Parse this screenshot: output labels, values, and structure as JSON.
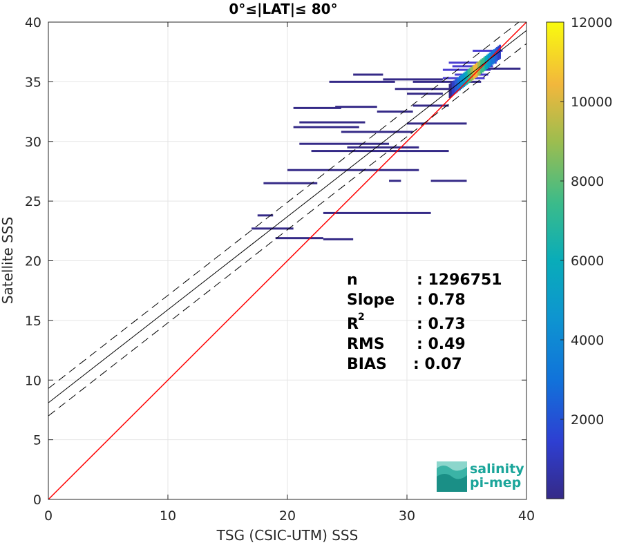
{
  "chart_data": {
    "type": "scatter",
    "subtype": "density-heatmap",
    "title": "0°≤|LAT|≤ 80°",
    "xlabel": "TSG (CSIC-UTM) SSS",
    "ylabel": "Satellite SSS",
    "xlim": [
      0,
      40
    ],
    "ylim": [
      0,
      40
    ],
    "xticks": [
      0,
      10,
      20,
      30,
      40
    ],
    "yticks": [
      0,
      5,
      10,
      15,
      20,
      25,
      30,
      35,
      40
    ],
    "grid": true,
    "colorbar": {
      "range": [
        0,
        12000
      ],
      "ticks": [
        2000,
        4000,
        6000,
        8000,
        10000,
        12000
      ],
      "colormap": "parula"
    },
    "lines": {
      "one_to_one": {
        "slope": 1,
        "intercept": 0,
        "color": "#ff0000"
      },
      "fit": {
        "slope": 0.78,
        "intercept": 8.1,
        "color": "#000000"
      },
      "fit_upper": {
        "slope": 0.78,
        "intercept": 9.3,
        "color": "#000000",
        "style": "dashed"
      },
      "fit_lower": {
        "slope": 0.78,
        "intercept": 7.0,
        "color": "#000000",
        "style": "dashed"
      }
    },
    "segments": [
      {
        "x0": 33.5,
        "x1": 37.5,
        "y": 36.6,
        "density": 0.3
      },
      {
        "x0": 33.8,
        "x1": 37.2,
        "y": 36.3,
        "density": 0.4
      },
      {
        "x0": 33.0,
        "x1": 37.0,
        "y": 36.0,
        "density": 0.35
      },
      {
        "x0": 34.0,
        "x1": 36.8,
        "y": 35.6,
        "density": 0.3
      },
      {
        "x0": 33.0,
        "x1": 36.5,
        "y": 35.3,
        "density": 0.25
      },
      {
        "x0": 30.5,
        "x1": 36.2,
        "y": 35.0,
        "density": 0.15
      },
      {
        "x0": 29.0,
        "x1": 34.5,
        "y": 34.4,
        "density": 0.1
      },
      {
        "x0": 28.0,
        "x1": 33.0,
        "y": 35.2,
        "density": 0.08
      },
      {
        "x0": 23.5,
        "x1": 29.0,
        "y": 35.0,
        "density": 0.06
      },
      {
        "x0": 25.5,
        "x1": 28.0,
        "y": 35.6,
        "density": 0.06
      },
      {
        "x0": 30.0,
        "x1": 33.0,
        "y": 34.0,
        "density": 0.1
      },
      {
        "x0": 24.0,
        "x1": 27.5,
        "y": 32.9,
        "density": 0.08
      },
      {
        "x0": 20.5,
        "x1": 24.5,
        "y": 32.8,
        "density": 0.05
      },
      {
        "x0": 27.5,
        "x1": 30.5,
        "y": 32.5,
        "density": 0.08
      },
      {
        "x0": 30.5,
        "x1": 33.5,
        "y": 33.0,
        "density": 0.08
      },
      {
        "x0": 21.0,
        "x1": 26.5,
        "y": 31.6,
        "density": 0.06
      },
      {
        "x0": 30.0,
        "x1": 35.0,
        "y": 31.5,
        "density": 0.06
      },
      {
        "x0": 20.5,
        "x1": 26.0,
        "y": 31.2,
        "density": 0.05
      },
      {
        "x0": 24.5,
        "x1": 30.5,
        "y": 30.8,
        "density": 0.06
      },
      {
        "x0": 21.0,
        "x1": 28.5,
        "y": 29.8,
        "density": 0.06
      },
      {
        "x0": 25.0,
        "x1": 31.0,
        "y": 29.5,
        "density": 0.06
      },
      {
        "x0": 22.0,
        "x1": 33.5,
        "y": 29.2,
        "density": 0.05
      },
      {
        "x0": 20.0,
        "x1": 31.0,
        "y": 27.6,
        "density": 0.05
      },
      {
        "x0": 32.0,
        "x1": 35.0,
        "y": 26.7,
        "density": 0.1
      },
      {
        "x0": 28.5,
        "x1": 29.5,
        "y": 26.7,
        "density": 0.05
      },
      {
        "x0": 18.0,
        "x1": 22.5,
        "y": 26.5,
        "density": 0.1
      },
      {
        "x0": 23.0,
        "x1": 32.0,
        "y": 24.0,
        "density": 0.04
      },
      {
        "x0": 17.5,
        "x1": 18.8,
        "y": 23.8,
        "density": 0.06
      },
      {
        "x0": 17.0,
        "x1": 20.5,
        "y": 22.7,
        "density": 0.08
      },
      {
        "x0": 19.0,
        "x1": 23.0,
        "y": 21.9,
        "density": 0.12
      },
      {
        "x0": 23.0,
        "x1": 25.5,
        "y": 21.8,
        "density": 0.04
      },
      {
        "x0": 36.0,
        "x1": 39.5,
        "y": 36.1,
        "density": 0.05
      },
      {
        "x0": 35.5,
        "x1": 38.0,
        "y": 37.6,
        "density": 0.25
      }
    ],
    "core": {
      "x0": 33.5,
      "x1": 37.7,
      "density": 0.9
    }
  },
  "stats": {
    "n_label": "n",
    "n_value": ": 1296751",
    "slope_label": "Slope",
    "slope_value": ": 0.78",
    "r2_label": "R",
    "r2_sup": "2",
    "r2_value": ": 0.73",
    "rms_label": "RMS",
    "rms_value": ": 0.49",
    "bias_label": "BIAS",
    "bias_value": ": 0.07"
  },
  "logo": {
    "line1": "salinity",
    "line2": "pi-mep",
    "color": "#1aa59a"
  },
  "colors": {
    "axis": "#262626",
    "grid": "#e5e5e5",
    "one_to_one": "#ff0000"
  }
}
